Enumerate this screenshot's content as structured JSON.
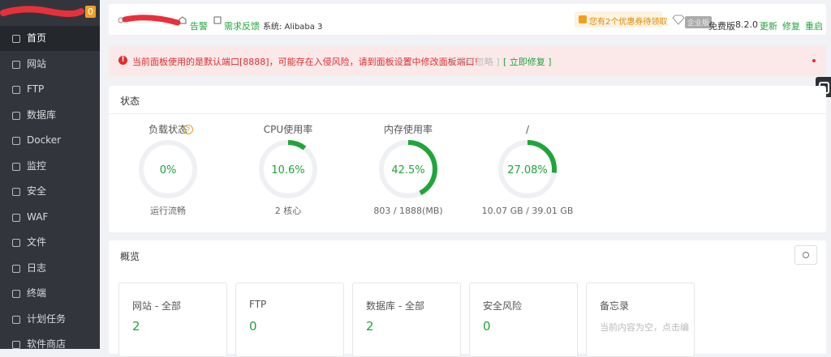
{
  "sidebar": {
    "badge": "0",
    "menu": [
      "首页",
      "网站",
      "FTP",
      "数据库",
      "Docker",
      "监控",
      "安全",
      "WAF",
      "文件",
      "日志",
      "终端",
      "计划任务",
      "软件商店"
    ]
  },
  "topbar": {
    "alerts": "告警",
    "feedback": "需求反馈",
    "system": "系统:  Alibaba 3",
    "coupon": "您有2个优惠券待领取",
    "edition_badge": "企业版",
    "edition": "免费版",
    "version": "8.2.0",
    "actions": [
      "更新",
      "修复",
      "重启"
    ]
  },
  "alert": {
    "message": "当前面板使用的是默认端口[8888]，可能存在入侵风险，请到面板设置中修改面板端口!",
    "ignore": "[ 不可忽略 ]",
    "fix": "[ 立即修复 ]"
  },
  "status": {
    "title": "状态",
    "gauges": [
      {
        "label": "负载状态",
        "value": "0%",
        "detail": "运行流畅"
      },
      {
        "label": "CPU使用率",
        "value": "10.6%",
        "detail": "2 核心"
      },
      {
        "label": "内存使用率",
        "value": "42.5%",
        "detail": "803 / 1888(MB)"
      },
      {
        "label": "/",
        "value": "27.08%",
        "detail": "10.07 GB / 39.01 GB"
      }
    ]
  },
  "overview": {
    "title": "概览",
    "cards": [
      {
        "title": "网站 - 全部",
        "value": "2"
      },
      {
        "title": "FTP",
        "value": "0"
      },
      {
        "title": "数据库 - 全部",
        "value": "2"
      },
      {
        "title": "安全风险",
        "value": "0"
      },
      {
        "title": "备忘录",
        "note": "当前内容为空，点击编"
      }
    ]
  }
}
